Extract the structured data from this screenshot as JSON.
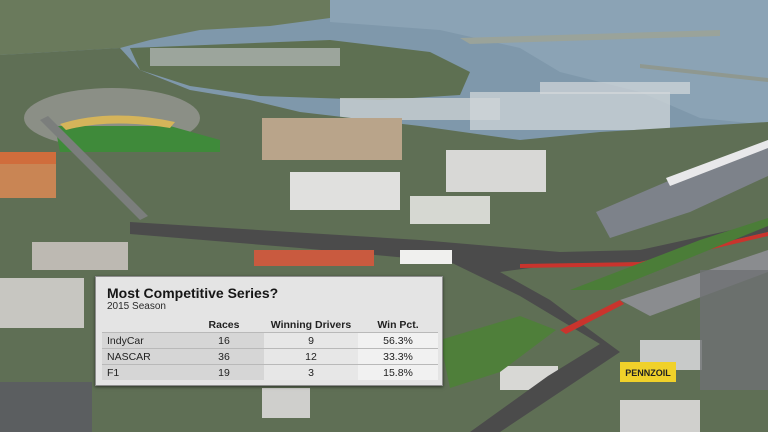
{
  "graphic": {
    "title": "Most Competitive Series?",
    "subtitle": "2015 Season",
    "columns": [
      "",
      "Races",
      "Winning Drivers",
      "Win Pct."
    ],
    "rows": [
      {
        "series": "IndyCar",
        "races": "16",
        "winners": "9",
        "pct": "56.3%"
      },
      {
        "series": "NASCAR",
        "races": "36",
        "winners": "12",
        "pct": "33.3%"
      },
      {
        "series": "F1",
        "races": "19",
        "winners": "3",
        "pct": "15.8%"
      }
    ]
  },
  "scene": {
    "sign_text": "PENNZOIL",
    "colors": {
      "water": "#7e98ab",
      "grass": "#4a7a36",
      "track": "#4a4a4a",
      "red_barrier": "#c9342d"
    }
  }
}
